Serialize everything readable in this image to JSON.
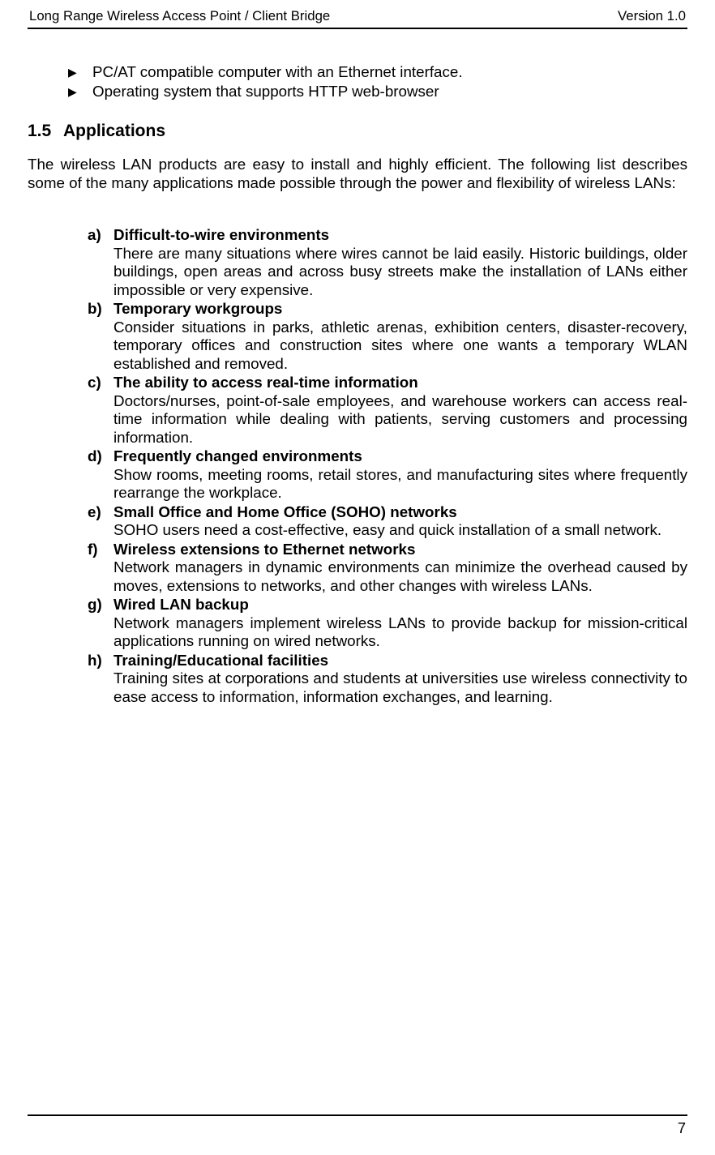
{
  "header": {
    "left": "Long Range Wireless Access Point / Client Bridge",
    "right": "Version 1.0"
  },
  "bullets": [
    "PC/AT compatible computer with an Ethernet interface.",
    "Operating system that supports HTTP web-browser"
  ],
  "section": {
    "number": "1.5",
    "title": "Applications"
  },
  "intro": "The wireless LAN products are easy to install and highly efficient. The following list describes some of the many applications made possible through the power and flexibility of wireless LANs:",
  "apps": [
    {
      "letter": "a)",
      "title": "Difficult-to-wire environments",
      "body": "There are many situations where wires cannot be laid easily. Historic buildings, older buildings, open areas and across busy streets make the installation of LANs either impossible or very expensive."
    },
    {
      "letter": "b)",
      "title": "Temporary workgroups",
      "body": "Consider situations in parks, athletic arenas, exhibition centers, disaster-recovery, temporary offices and construction sites where one wants a temporary WLAN established and removed."
    },
    {
      "letter": "c)",
      "title": "The ability to access real-time information",
      "body": "Doctors/nurses, point-of-sale employees, and warehouse workers can access real-time information while dealing with patients, serving customers and processing information."
    },
    {
      "letter": "d)",
      "title": "Frequently changed environments",
      "body": "Show rooms, meeting rooms, retail stores, and manufacturing sites where frequently rearrange the workplace."
    },
    {
      "letter": "e)",
      "title": "Small Office and Home Office (SOHO) networks",
      "body": "SOHO users need a cost-effective, easy and quick installation of a small network."
    },
    {
      "letter": "f)",
      "title": "Wireless extensions to Ethernet networks",
      "body": "Network managers in dynamic environments can minimize the overhead caused by moves, extensions to networks, and other changes with wireless LANs."
    },
    {
      "letter": "g)",
      "title": "Wired LAN backup",
      "body": "Network managers implement wireless LANs to provide backup for mission-critical applications running on wired networks."
    },
    {
      "letter": "h)",
      "title": "Training/Educational facilities",
      "body": "Training sites at corporations and students at universities use wireless connectivity to ease access to information, information exchanges, and learning."
    }
  ],
  "page_number": "7",
  "colors": {
    "text": "#000000",
    "bg": "#ffffff",
    "rule": "#000000"
  }
}
